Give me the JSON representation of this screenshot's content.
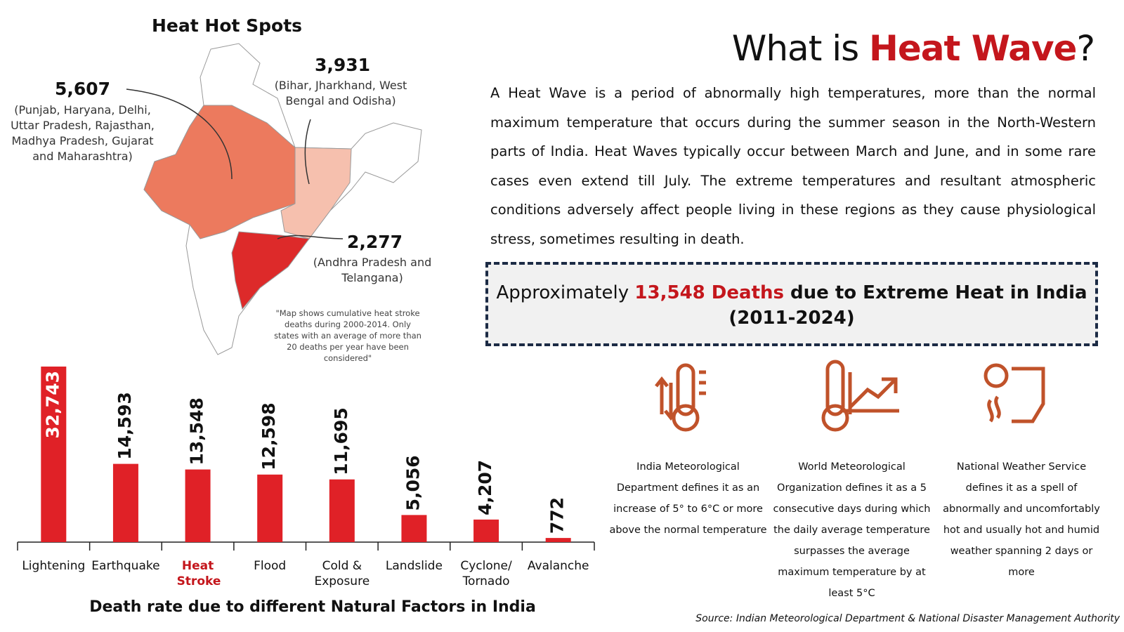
{
  "header": {
    "title_parts": [
      "What is ",
      "Heat Wave",
      "?"
    ]
  },
  "description": "A Heat Wave is a period of abnormally high temperatures, more than the normal maximum temperature that occurs during the summer season in the North-Western parts of India. Heat Waves typically occur between March and June, and in some rare cases even extend till July. The extreme temperatures and resultant atmospheric conditions adversely affect people living in these regions as they cause physiological stress, sometimes resulting in death.",
  "highlight_box": {
    "prefix": "Approximately ",
    "emphasis": "13,548 Deaths",
    "suffix": " due to Extreme Heat in India",
    "period": "(2011-2024)"
  },
  "map": {
    "title": "Heat Hot Spots",
    "callouts": [
      {
        "value": "5,607",
        "regions": "(Punjab, Haryana, Delhi, Uttar Pradesh, Rajasthan, Madhya Pradesh, Gujarat and Maharashtra)"
      },
      {
        "value": "3,931",
        "regions": "(Bihar, Jharkhand, West Bengal and Odisha)"
      },
      {
        "value": "2,277",
        "regions": "(Andhra Pradesh and Telangana)"
      }
    ],
    "note": "\"Map shows cumulative heat stroke deaths during 2000-2014. Only states with an average of more than 20 deaths per year have been considered\""
  },
  "definitions": [
    "India Meteorological Department defines it as an increase of 5° to 6°C or more above the normal temperature",
    "World Meteorological Organization defines it as a 5 consecutive days during which the daily average temperature surpasses the average maximum temperature by at least 5°C",
    "National Weather Service defines it as a spell of abnormally and uncomfortably hot and usually hot and humid weather spanning 2 days or more"
  ],
  "source": "Source: Indian Meteorological Department & National Disaster Management Authority",
  "chart_data": {
    "type": "bar",
    "title": "Death rate due to different Natural Factors in India",
    "categories": [
      "Lightening",
      "Earthquake",
      "Heat Stroke",
      "Flood",
      "Cold & Exposure",
      "Landslide",
      "Cyclone/ Tornado",
      "Avalanche"
    ],
    "values": [
      32743,
      14593,
      13548,
      12598,
      11695,
      5056,
      4207,
      772
    ],
    "value_labels": [
      "32,743",
      "14,593",
      "13,548",
      "12,598",
      "11,695",
      "5,056",
      "4,207",
      "772"
    ],
    "color": "#e02127"
  }
}
